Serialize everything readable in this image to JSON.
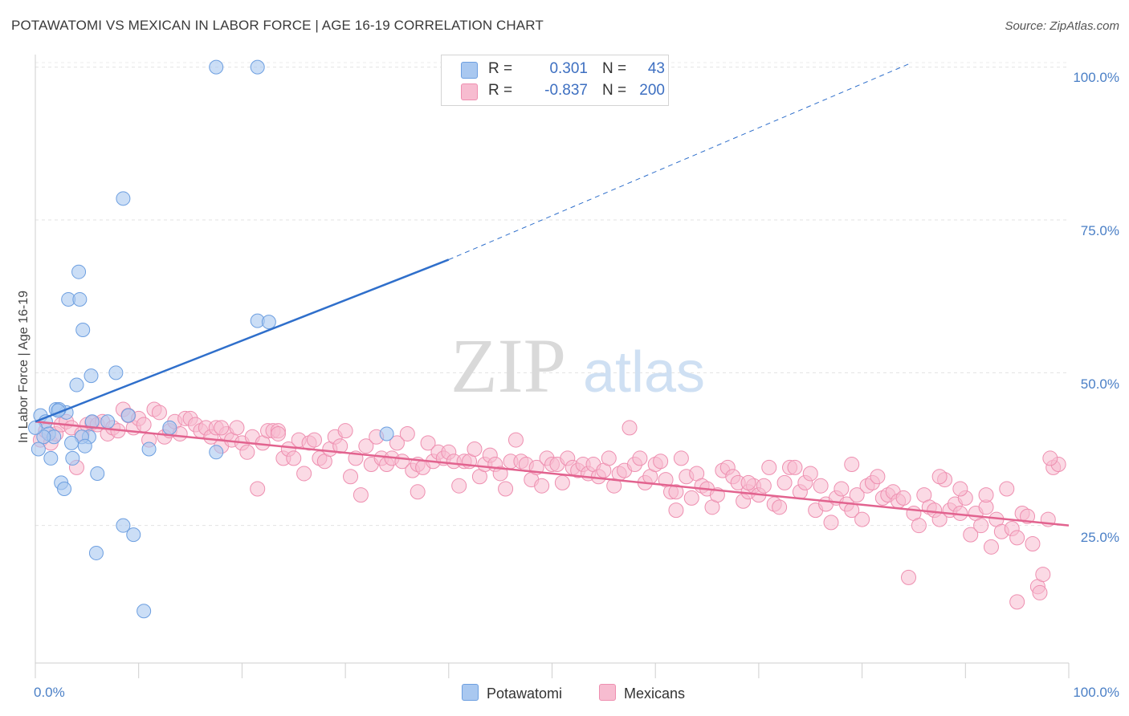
{
  "title": "POTAWATOMI VS MEXICAN IN LABOR FORCE | AGE 16-19 CORRELATION CHART",
  "source": "Source: ZipAtlas.com",
  "watermark": {
    "zip": "ZIP",
    "atlas": "atlas"
  },
  "colors": {
    "potawatomi_fill": "#a9c8f0",
    "potawatomi_stroke": "#6d9fe0",
    "potawatomi_line": "#2f6fcb",
    "mexicans_fill": "#f7bcd0",
    "mexicans_stroke": "#ee8fb0",
    "mexicans_line": "#e2638f",
    "tick_label": "#4a7fc6"
  },
  "legend": {
    "rows": [
      {
        "r_label": "R =",
        "r_value": "0.301",
        "n_label": "N =",
        "n_value": "43"
      },
      {
        "r_label": "R =",
        "r_value": "-0.837",
        "n_label": "N =",
        "n_value": "200"
      }
    ]
  },
  "bottom_legend": {
    "potawatomi": "Potawatomi",
    "mexicans": "Mexicans"
  },
  "chart_data": {
    "type": "scatter",
    "title": "POTAWATOMI VS MEXICAN IN LABOR FORCE | AGE 16-19 CORRELATION CHART",
    "ylabel": "In Labor Force | Age 16-19",
    "xlabel": "",
    "x_ticks": [
      "0.0%",
      "100.0%"
    ],
    "y_ticks": [
      "100.0%",
      "75.0%",
      "50.0%",
      "25.0%"
    ],
    "xlim": [
      0,
      100
    ],
    "ylim": [
      2.5,
      101
    ],
    "grid": true,
    "legend_position": "top-center",
    "series": [
      {
        "name": "Potawatomi",
        "points": [
          [
            17.5,
            100.0
          ],
          [
            21.5,
            100.0
          ],
          [
            8.5,
            78.5
          ],
          [
            4.2,
            66.5
          ],
          [
            3.2,
            62.0
          ],
          [
            4.3,
            62.0
          ],
          [
            21.5,
            58.5
          ],
          [
            22.6,
            58.3
          ],
          [
            4.6,
            57.0
          ],
          [
            5.4,
            49.5
          ],
          [
            7.8,
            50.0
          ],
          [
            4.0,
            48.0
          ],
          [
            0.5,
            43.0
          ],
          [
            2.0,
            44.0
          ],
          [
            3.0,
            43.5
          ],
          [
            2.3,
            44.0
          ],
          [
            1.0,
            42.0
          ],
          [
            9.0,
            43.0
          ],
          [
            5.5,
            42.0
          ],
          [
            7.0,
            42.0
          ],
          [
            13.0,
            41.0
          ],
          [
            1.3,
            40.0
          ],
          [
            1.8,
            39.5
          ],
          [
            5.2,
            39.5
          ],
          [
            0.8,
            39.5
          ],
          [
            4.5,
            39.5
          ],
          [
            3.5,
            38.5
          ],
          [
            4.8,
            38.0
          ],
          [
            17.5,
            37.0
          ],
          [
            11.0,
            37.5
          ],
          [
            34.0,
            40.0
          ],
          [
            0.3,
            37.5
          ],
          [
            1.5,
            36.0
          ],
          [
            3.6,
            36.0
          ],
          [
            6.0,
            33.5
          ],
          [
            2.5,
            32.0
          ],
          [
            2.8,
            31.0
          ],
          [
            8.5,
            25.0
          ],
          [
            9.5,
            23.5
          ],
          [
            5.9,
            20.5
          ],
          [
            10.5,
            11.0
          ],
          [
            0.0,
            41.0
          ],
          [
            2.2,
            43.8
          ]
        ],
        "trend": {
          "x0": 0.0,
          "y0": 42.0,
          "x1": 40.0,
          "y1": 68.5,
          "dash_to_x": 84.5,
          "dash_to_y": 100.5
        }
      },
      {
        "name": "Mexicans",
        "points": [
          [
            0.5,
            39.0
          ],
          [
            1.0,
            40.5
          ],
          [
            1.5,
            38.5
          ],
          [
            2.0,
            40.0
          ],
          [
            2.5,
            41.5
          ],
          [
            3.0,
            42.0
          ],
          [
            3.5,
            41.0
          ],
          [
            4.0,
            34.5
          ],
          [
            4.5,
            40.0
          ],
          [
            5.0,
            41.5
          ],
          [
            5.5,
            41.8
          ],
          [
            6.0,
            41.5
          ],
          [
            6.5,
            42.0
          ],
          [
            7.0,
            40.0
          ],
          [
            7.5,
            41.0
          ],
          [
            8.0,
            40.5
          ],
          [
            8.5,
            44.0
          ],
          [
            9.0,
            43.0
          ],
          [
            9.5,
            41.0
          ],
          [
            10.0,
            42.5
          ],
          [
            10.5,
            41.5
          ],
          [
            11.0,
            39.0
          ],
          [
            11.5,
            44.0
          ],
          [
            12.0,
            43.5
          ],
          [
            12.5,
            39.5
          ],
          [
            13.0,
            40.5
          ],
          [
            13.5,
            42.0
          ],
          [
            14.0,
            40.0
          ],
          [
            14.5,
            42.5
          ],
          [
            15.0,
            42.5
          ],
          [
            15.5,
            41.5
          ],
          [
            16.0,
            40.5
          ],
          [
            16.5,
            41.0
          ],
          [
            17.0,
            39.5
          ],
          [
            17.5,
            41.0
          ],
          [
            18.0,
            38.0
          ],
          [
            18.5,
            40.0
          ],
          [
            19.0,
            39.0
          ],
          [
            19.5,
            41.0
          ],
          [
            20.0,
            38.5
          ],
          [
            20.5,
            37.0
          ],
          [
            21.0,
            39.5
          ],
          [
            21.5,
            31.0
          ],
          [
            22.0,
            38.5
          ],
          [
            22.5,
            40.5
          ],
          [
            23.0,
            40.5
          ],
          [
            23.5,
            40.5
          ],
          [
            24.0,
            36.0
          ],
          [
            24.5,
            37.5
          ],
          [
            25.0,
            36.0
          ],
          [
            25.5,
            39.0
          ],
          [
            26.0,
            33.5
          ],
          [
            26.5,
            38.5
          ],
          [
            27.0,
            39.0
          ],
          [
            27.5,
            36.0
          ],
          [
            28.0,
            35.5
          ],
          [
            28.5,
            37.5
          ],
          [
            29.0,
            39.5
          ],
          [
            29.5,
            38.0
          ],
          [
            30.0,
            40.5
          ],
          [
            30.5,
            33.0
          ],
          [
            31.0,
            36.0
          ],
          [
            31.5,
            30.0
          ],
          [
            32.0,
            38.0
          ],
          [
            32.5,
            35.0
          ],
          [
            33.0,
            39.5
          ],
          [
            33.5,
            36.0
          ],
          [
            34.0,
            35.0
          ],
          [
            34.5,
            36.0
          ],
          [
            35.0,
            38.5
          ],
          [
            35.5,
            35.5
          ],
          [
            36.0,
            40.0
          ],
          [
            36.5,
            34.0
          ],
          [
            37.0,
            35.0
          ],
          [
            37.5,
            34.5
          ],
          [
            38.0,
            38.5
          ],
          [
            38.5,
            35.5
          ],
          [
            39.0,
            37.0
          ],
          [
            39.5,
            36.0
          ],
          [
            40.0,
            37.0
          ],
          [
            40.5,
            35.5
          ],
          [
            41.0,
            31.5
          ],
          [
            41.5,
            35.5
          ],
          [
            42.0,
            35.5
          ],
          [
            42.5,
            37.5
          ],
          [
            43.0,
            33.0
          ],
          [
            43.5,
            35.0
          ],
          [
            44.0,
            36.5
          ],
          [
            44.5,
            35.0
          ],
          [
            45.0,
            33.5
          ],
          [
            45.5,
            31.0
          ],
          [
            46.0,
            35.5
          ],
          [
            46.5,
            39.0
          ],
          [
            47.0,
            35.5
          ],
          [
            47.5,
            35.0
          ],
          [
            48.0,
            32.5
          ],
          [
            48.5,
            34.5
          ],
          [
            49.0,
            31.5
          ],
          [
            49.5,
            36.0
          ],
          [
            50.0,
            35.0
          ],
          [
            50.5,
            35.0
          ],
          [
            51.0,
            32.0
          ],
          [
            51.5,
            36.0
          ],
          [
            52.0,
            34.5
          ],
          [
            52.5,
            34.0
          ],
          [
            53.0,
            35.0
          ],
          [
            53.5,
            33.5
          ],
          [
            54.0,
            35.0
          ],
          [
            54.5,
            33.0
          ],
          [
            55.0,
            34.0
          ],
          [
            55.5,
            36.0
          ],
          [
            56.0,
            31.5
          ],
          [
            56.5,
            33.5
          ],
          [
            57.0,
            34.0
          ],
          [
            57.5,
            41.0
          ],
          [
            58.0,
            35.0
          ],
          [
            58.5,
            36.0
          ],
          [
            59.0,
            32.0
          ],
          [
            59.5,
            33.0
          ],
          [
            60.0,
            35.0
          ],
          [
            60.5,
            35.5
          ],
          [
            61.0,
            32.5
          ],
          [
            61.5,
            30.5
          ],
          [
            62.0,
            30.5
          ],
          [
            62.5,
            36.0
          ],
          [
            63.0,
            33.0
          ],
          [
            63.5,
            29.5
          ],
          [
            64.0,
            33.5
          ],
          [
            64.5,
            31.5
          ],
          [
            65.0,
            31.0
          ],
          [
            65.5,
            28.0
          ],
          [
            66.0,
            30.0
          ],
          [
            66.5,
            34.0
          ],
          [
            67.0,
            34.5
          ],
          [
            67.5,
            33.0
          ],
          [
            68.0,
            32.0
          ],
          [
            68.5,
            29.0
          ],
          [
            69.0,
            30.5
          ],
          [
            69.5,
            31.5
          ],
          [
            70.0,
            30.0
          ],
          [
            70.5,
            31.5
          ],
          [
            71.0,
            34.5
          ],
          [
            71.5,
            28.5
          ],
          [
            72.0,
            28.0
          ],
          [
            72.5,
            32.0
          ],
          [
            73.0,
            34.5
          ],
          [
            73.5,
            34.5
          ],
          [
            74.0,
            30.5
          ],
          [
            74.5,
            32.0
          ],
          [
            75.0,
            33.5
          ],
          [
            75.5,
            27.5
          ],
          [
            76.0,
            31.5
          ],
          [
            76.5,
            28.5
          ],
          [
            77.0,
            25.5
          ],
          [
            77.5,
            29.5
          ],
          [
            78.0,
            31.0
          ],
          [
            78.5,
            28.5
          ],
          [
            79.0,
            27.5
          ],
          [
            79.5,
            30.0
          ],
          [
            80.0,
            26.0
          ],
          [
            80.5,
            31.5
          ],
          [
            81.0,
            32.0
          ],
          [
            81.5,
            33.0
          ],
          [
            82.0,
            29.5
          ],
          [
            82.5,
            30.0
          ],
          [
            83.0,
            30.5
          ],
          [
            83.5,
            29.0
          ],
          [
            84.0,
            29.5
          ],
          [
            84.5,
            16.5
          ],
          [
            85.0,
            27.0
          ],
          [
            85.5,
            25.0
          ],
          [
            86.0,
            30.0
          ],
          [
            86.5,
            28.0
          ],
          [
            87.0,
            27.5
          ],
          [
            87.5,
            26.0
          ],
          [
            88.0,
            32.5
          ],
          [
            88.5,
            27.5
          ],
          [
            89.0,
            28.5
          ],
          [
            89.5,
            27.0
          ],
          [
            90.0,
            29.5
          ],
          [
            90.5,
            23.5
          ],
          [
            91.0,
            27.0
          ],
          [
            91.5,
            25.0
          ],
          [
            92.0,
            28.0
          ],
          [
            92.5,
            21.5
          ],
          [
            93.0,
            26.0
          ],
          [
            93.5,
            24.0
          ],
          [
            94.0,
            31.0
          ],
          [
            94.5,
            24.5
          ],
          [
            95.0,
            23.0
          ],
          [
            95.5,
            27.0
          ],
          [
            96.0,
            26.5
          ],
          [
            96.5,
            22.0
          ],
          [
            97.0,
            15.0
          ],
          [
            97.5,
            17.0
          ],
          [
            98.0,
            26.0
          ],
          [
            98.5,
            34.5
          ],
          [
            99.0,
            35.0
          ],
          [
            79.0,
            35.0
          ],
          [
            89.5,
            31.0
          ],
          [
            87.5,
            33.0
          ],
          [
            95.0,
            12.5
          ],
          [
            97.2,
            14.0
          ],
          [
            98.2,
            36.0
          ],
          [
            92.0,
            30.0
          ],
          [
            69.0,
            32.0
          ],
          [
            62.0,
            27.5
          ],
          [
            37.0,
            30.5
          ],
          [
            18.0,
            41.0
          ],
          [
            23.5,
            40.0
          ]
        ],
        "trend": {
          "x0": 0.0,
          "y0": 42.0,
          "x1": 100.0,
          "y1": 25.0
        }
      }
    ]
  }
}
